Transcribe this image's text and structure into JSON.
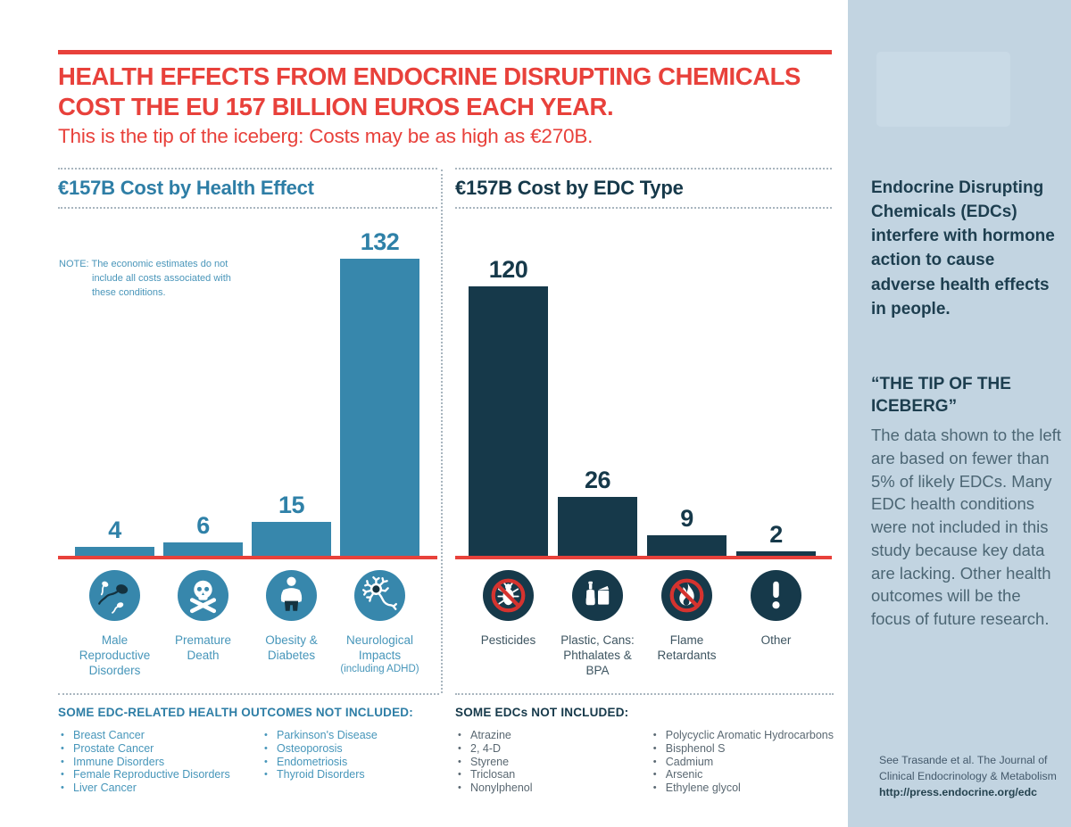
{
  "colors": {
    "red": "#E8413B",
    "blue": "#3787AC",
    "navy": "#16394A",
    "sidebar_bg": "#C2D4E1"
  },
  "header": {
    "title_line1": "HEALTH EFFECTS FROM ENDOCRINE DISRUPTING CHEMICALS",
    "title_line2": "COST THE EU 157 BILLION EUROS EACH YEAR.",
    "subtitle": "This is the tip of the iceberg: Costs may be as high as €270B."
  },
  "chart_data": [
    {
      "type": "bar",
      "title": "€157B Cost by Health Effect",
      "categories": [
        "Male Reproductive Disorders",
        "Premature Death",
        "Obesity & Diabetes",
        "Neurological Impacts (including ADHD)"
      ],
      "category_labels": [
        {
          "main": "Male Reproductive Disorders",
          "sub": ""
        },
        {
          "main": "Premature Death",
          "sub": ""
        },
        {
          "main": "Obesity & Diabetes",
          "sub": ""
        },
        {
          "main": "Neurological Impacts",
          "sub": "(including ADHD)"
        }
      ],
      "values": [
        4,
        6,
        15,
        132
      ],
      "unit": "billion euros",
      "ylim": [
        0,
        140
      ],
      "bar_color": "#3787AC",
      "icons": [
        "sperm-icon",
        "skull-crossbones-icon",
        "obesity-icon",
        "neuron-icon"
      ],
      "note": "NOTE: The economic estimates do not include all costs associated with these conditions.",
      "legend": "none",
      "grid": "off"
    },
    {
      "type": "bar",
      "title": "€157B Cost by EDC Type",
      "categories": [
        "Pesticides",
        "Plastic, Cans: Phthalates & BPA",
        "Flame Retardants",
        "Other"
      ],
      "category_labels": [
        {
          "main": "Pesticides",
          "sub": ""
        },
        {
          "main": "Plastic, Cans: Phthalates & BPA",
          "sub": ""
        },
        {
          "main": "Flame Retardants",
          "sub": ""
        },
        {
          "main": "Other",
          "sub": ""
        }
      ],
      "values": [
        120,
        26,
        9,
        2
      ],
      "unit": "billion euros",
      "ylim": [
        0,
        140
      ],
      "bar_color": "#16394A",
      "icons": [
        "no-pesticides-icon",
        "plastic-can-icon",
        "no-flame-icon",
        "exclamation-icon"
      ],
      "note": "",
      "legend": "none",
      "grid": "off"
    }
  ],
  "left_list": {
    "header": "SOME EDC-RELATED HEALTH OUTCOMES NOT INCLUDED:",
    "col1": [
      "Breast Cancer",
      "Prostate Cancer",
      "Immune Disorders",
      "Female Reproductive Disorders",
      "Liver Cancer"
    ],
    "col2": [
      "Parkinson's Disease",
      "Osteoporosis",
      "Endometriosis",
      "Thyroid Disorders"
    ]
  },
  "right_list": {
    "header": "SOME EDCs NOT INCLUDED:",
    "col1": [
      "Atrazine",
      "2, 4-D",
      "Styrene",
      "Triclosan",
      "Nonylphenol"
    ],
    "col2": [
      "Polycyclic Aromatic Hydrocarbons",
      "Bisphenol S",
      "Cadmium",
      "Arsenic",
      "Ethylene glycol"
    ]
  },
  "sidebar": {
    "intro": "Endocrine Disrupting Chemicals (EDCs) interfere with hormone action to cause adverse health effects in people.",
    "tip_title": "“THE TIP OF THE ICEBERG”",
    "tip_body": "The data shown to the left are based on fewer than 5% of likely EDCs. Many EDC health conditions were not included in this study because key data are lacking. Other health outcomes will be the focus of future research.",
    "citation": "See Trasande et al. The Journal of Clinical Endocrinology & Metabolism",
    "citation_url": "http://press.endocrine.org/edc"
  }
}
